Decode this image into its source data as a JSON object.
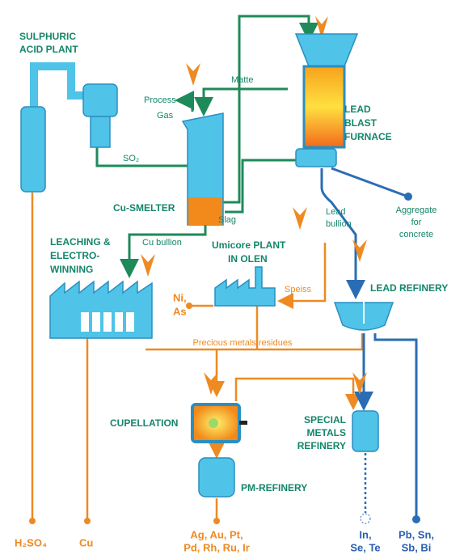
{
  "labels": {
    "acid_plant": [
      "SULPHURIC",
      "ACID PLANT"
    ],
    "process_gas": [
      "Process",
      "Gas"
    ],
    "so2": "SO₂",
    "matte": "Matte",
    "furnace": [
      "LEAD",
      "BLAST",
      "FURNACE"
    ],
    "smelter": "Cu-SMELTER",
    "slag": "Slag",
    "cu_bullion": "Cu bullion",
    "leaching": [
      "LEACHING &",
      "ELECTRO-",
      "WINNING"
    ],
    "umicore": [
      "Umicore PLANT",
      "IN OLEN"
    ],
    "lead_bullion": [
      "Lead",
      "bullion"
    ],
    "aggregate": [
      "Aggregate",
      "for",
      "concrete"
    ],
    "speiss": "Speiss",
    "ni_as": [
      "Ni,",
      "As"
    ],
    "lead_refinery": "LEAD REFINERY",
    "residues": "Precious metals residues",
    "cupellation": "CUPELLATION",
    "special": [
      "SPECIAL",
      "METALS",
      "REFINERY"
    ],
    "pm_refinery": "PM-REFINERY"
  },
  "outputs": {
    "h2so4": "H₂SO₄",
    "cu": "Cu",
    "pm": [
      "Ag, Au, Pt,",
      "Pd, Rh, Ru, Ir"
    ],
    "minor": [
      "In,",
      "Se, Te"
    ],
    "base": [
      "Pb, Sn,",
      "Sb, Bi"
    ]
  }
}
